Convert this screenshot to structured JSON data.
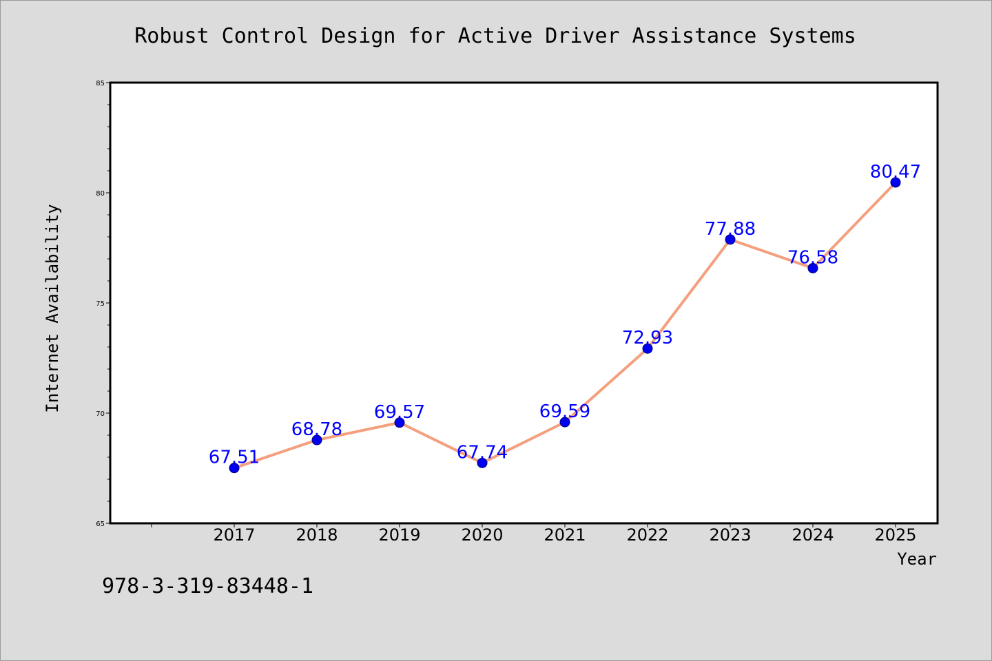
{
  "footnote": "978-3-319-83448-1",
  "chart_data": {
    "type": "line",
    "title": "Robust Control Design for Active Driver Assistance Systems",
    "xlabel": "Year",
    "ylabel": "Internet Availability",
    "categories": [
      "2017",
      "2018",
      "2019",
      "2020",
      "2021",
      "2022",
      "2023",
      "2024",
      "2025"
    ],
    "series": [
      {
        "values": [
          67.51,
          68.78,
          69.57,
          67.74,
          69.59,
          72.93,
          77.88,
          76.58,
          80.47
        ],
        "labels": [
          "67.51",
          "68.78",
          "69.57",
          "67.74",
          "69.59",
          "72.93",
          "77.88",
          "76.58",
          "80.47"
        ],
        "line_color": "#f4a07e",
        "marker_color": "#0000ee"
      }
    ],
    "ylim": [
      65,
      85
    ],
    "yticks": [
      65,
      70,
      75,
      80,
      85
    ],
    "ytick_labels": [
      "65",
      "70",
      "75",
      "80",
      "85"
    ],
    "grid": false,
    "plot_background": "#ffffff",
    "label_color": "#0000ff"
  }
}
